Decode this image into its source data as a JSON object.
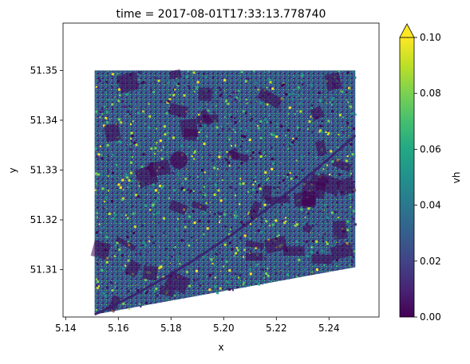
{
  "chart_data": {
    "type": "heatmap",
    "title": "time = 2017-08-01T17:33:13.778740",
    "xlabel": "x",
    "ylabel": "y",
    "xlim": [
      5.139,
      5.259
    ],
    "ylim": [
      51.3005,
      51.3595
    ],
    "x_ticks": [
      {
        "value": 5.14,
        "label": "5.14"
      },
      {
        "value": 5.16,
        "label": "5.16"
      },
      {
        "value": 5.18,
        "label": "5.18"
      },
      {
        "value": 5.2,
        "label": "5.20"
      },
      {
        "value": 5.22,
        "label": "5.22"
      },
      {
        "value": 5.24,
        "label": "5.24"
      }
    ],
    "y_ticks": [
      {
        "value": 51.31,
        "label": "51.31"
      },
      {
        "value": 51.32,
        "label": "51.32"
      },
      {
        "value": 51.33,
        "label": "51.33"
      },
      {
        "value": 51.34,
        "label": "51.34"
      },
      {
        "value": 51.35,
        "label": "51.35"
      }
    ],
    "data_extent": {
      "x_min": 5.151,
      "x_max": 5.25,
      "y_top": 51.35,
      "y_bottom_left": 51.301,
      "y_bottom_right": 51.3105
    },
    "colorbar": {
      "label": "vh",
      "colormap": "viridis",
      "vmin": 0.0,
      "vmax": 0.1,
      "extend": "max",
      "ticks": [
        {
          "value": 0.0,
          "label": "0.00"
        },
        {
          "value": 0.02,
          "label": "0.02"
        },
        {
          "value": 0.04,
          "label": "0.04"
        },
        {
          "value": 0.06,
          "label": "0.06"
        },
        {
          "value": 0.08,
          "label": "0.08"
        },
        {
          "value": 0.1,
          "label": "0.10"
        }
      ]
    }
  }
}
